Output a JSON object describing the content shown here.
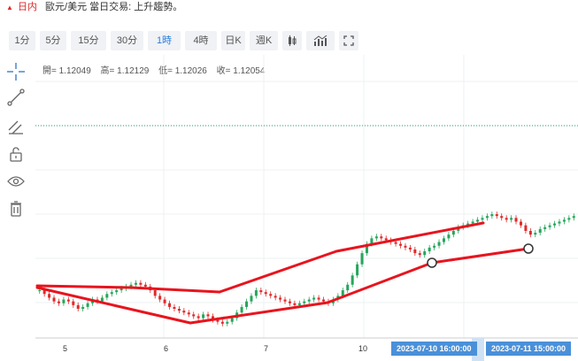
{
  "header": {
    "period": "日内",
    "symbol_text": "歐元/美元 當日交易: 上升趨勢。"
  },
  "toolbar": {
    "items": [
      {
        "label": "1分",
        "active": false
      },
      {
        "label": "5分",
        "active": false
      },
      {
        "label": "15分",
        "active": false
      },
      {
        "label": "30分",
        "active": false
      },
      {
        "label": "1時",
        "active": true
      },
      {
        "label": "4時",
        "active": false
      },
      {
        "label": "日K",
        "active": false
      },
      {
        "label": "週K",
        "active": false
      }
    ],
    "icons": [
      "candlestick-type-icon",
      "indicator-icon",
      "fullscreen-icon"
    ]
  },
  "sidebar": {
    "icons": [
      "crosshair-icon",
      "line-tool-icon",
      "multi-line-tool-icon",
      "lock-icon",
      "eye-icon",
      "trash-icon"
    ]
  },
  "ohlc": {
    "open": "開= 1.12049",
    "high": "高= 1.12129",
    "low": "低= 1.12026",
    "close": "收= 1.12054"
  },
  "chart_data": {
    "type": "candlestick",
    "x_labels": [
      "5",
      "6",
      "7",
      "10"
    ],
    "crosshair_times": [
      "2023-07-10 16:00:00",
      "2023-07-11 15:00:00"
    ],
    "colors": {
      "up": "#26a65b",
      "down": "#e02a2a",
      "trendline": "#e8141e",
      "dotted": "#2e9b6e"
    },
    "candles_close_rel": [
      0.5,
      0.48,
      0.46,
      0.44,
      0.43,
      0.45,
      0.44,
      0.42,
      0.4,
      0.41,
      0.43,
      0.45,
      0.44,
      0.46,
      0.48,
      0.49,
      0.5,
      0.51,
      0.52,
      0.53,
      0.54,
      0.53,
      0.52,
      0.5,
      0.47,
      0.45,
      0.43,
      0.41,
      0.4,
      0.39,
      0.38,
      0.37,
      0.36,
      0.35,
      0.37,
      0.36,
      0.34,
      0.33,
      0.32,
      0.33,
      0.35,
      0.38,
      0.41,
      0.44,
      0.47,
      0.5,
      0.49,
      0.48,
      0.47,
      0.46,
      0.45,
      0.44,
      0.43,
      0.42,
      0.43,
      0.44,
      0.45,
      0.46,
      0.45,
      0.44,
      0.43,
      0.45,
      0.47,
      0.5,
      0.53,
      0.58,
      0.64,
      0.7,
      0.75,
      0.78,
      0.79,
      0.78,
      0.77,
      0.76,
      0.75,
      0.74,
      0.73,
      0.72,
      0.7,
      0.69,
      0.71,
      0.73,
      0.74,
      0.76,
      0.78,
      0.8,
      0.82,
      0.84,
      0.85,
      0.86,
      0.87,
      0.88,
      0.89,
      0.9,
      0.91,
      0.9,
      0.89,
      0.88,
      0.89,
      0.87,
      0.85,
      0.82,
      0.8,
      0.81,
      0.83,
      0.84,
      0.85,
      0.86,
      0.87,
      0.88,
      0.89,
      0.9
    ]
  }
}
